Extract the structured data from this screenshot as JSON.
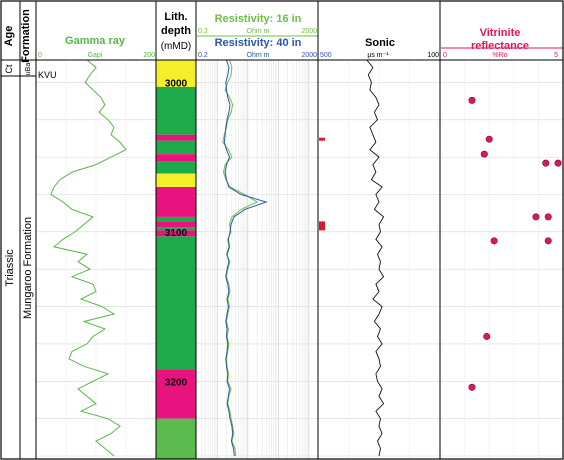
{
  "chart_data": {
    "type": "line",
    "depth_axis": {
      "unit": "mMD",
      "range": [
        2985,
        3252
      ],
      "tick_labels": [
        "3000",
        "3100",
        "3200"
      ]
    },
    "columns": {
      "age": {
        "header": "Age",
        "values": [
          "Ct",
          "Triassic"
        ]
      },
      "formation": {
        "header": "Formation",
        "values": [
          "uBa",
          "KVU",
          "Mungaroo Formation"
        ]
      },
      "gamma_ray": {
        "title": "Gamma ray",
        "unit": "Gapi",
        "range": [
          0,
          200
        ],
        "range_labels": [
          "0",
          "200"
        ],
        "color": "#56b848",
        "depth": [
          2985,
          2990,
          2995,
          3000,
          3005,
          3010,
          3015,
          3020,
          3025,
          3030,
          3035,
          3040,
          3045,
          3050,
          3055,
          3060,
          3065,
          3070,
          3075,
          3080,
          3085,
          3090,
          3095,
          3100,
          3105,
          3110,
          3115,
          3120,
          3125,
          3130,
          3135,
          3140,
          3145,
          3150,
          3155,
          3160,
          3165,
          3170,
          3175,
          3180,
          3185,
          3190,
          3195,
          3200,
          3205,
          3210,
          3215,
          3220,
          3225,
          3230,
          3235,
          3240,
          3245,
          3250
        ],
        "values": [
          85,
          100,
          90,
          82,
          95,
          108,
          115,
          105,
          120,
          130,
          125,
          140,
          150,
          125,
          100,
          60,
          40,
          30,
          25,
          45,
          60,
          95,
          80,
          65,
          45,
          30,
          85,
          70,
          90,
          60,
          95,
          100,
          75,
          110,
          130,
          80,
          115,
          95,
          85,
          60,
          55,
          80,
          120,
          95,
          70,
          85,
          100,
          75,
          120,
          140,
          125,
          100,
          115,
          130
        ]
      },
      "lithology": {
        "title": "Lith.",
        "subtitle": "depth",
        "unit_label": "(mMD)",
        "colors": {
          "sand": "#f3ef2b",
          "shale": "#e8137f",
          "sandstone": "#1faa4a",
          "siltstone": "#5bbb4e"
        },
        "intervals": [
          {
            "top": 2985,
            "base": 3003,
            "type": "sand"
          },
          {
            "top": 3003,
            "base": 3035,
            "type": "sandstone"
          },
          {
            "top": 3035,
            "base": 3039,
            "type": "shale"
          },
          {
            "top": 3039,
            "base": 3048,
            "type": "sandstone"
          },
          {
            "top": 3048,
            "base": 3053,
            "type": "shale"
          },
          {
            "top": 3053,
            "base": 3061,
            "type": "sandstone"
          },
          {
            "top": 3061,
            "base": 3070,
            "type": "sand"
          },
          {
            "top": 3070,
            "base": 3090,
            "type": "shale"
          },
          {
            "top": 3090,
            "base": 3093,
            "type": "sandstone"
          },
          {
            "top": 3093,
            "base": 3097,
            "type": "shale"
          },
          {
            "top": 3097,
            "base": 3099,
            "type": "sandstone"
          },
          {
            "top": 3099,
            "base": 3103,
            "type": "shale"
          },
          {
            "top": 3103,
            "base": 3192,
            "type": "sandstone"
          },
          {
            "top": 3192,
            "base": 3225,
            "type": "shale"
          },
          {
            "top": 3225,
            "base": 3252,
            "type": "siltstone"
          }
        ]
      },
      "resistivity": {
        "scale": "log",
        "unit": "Ohm m",
        "range": [
          0.2,
          2000
        ],
        "range_labels": [
          "0.2",
          "2000"
        ],
        "series": [
          {
            "name": "Resistivity: 16 in",
            "color": "#6dbf45",
            "depth": [
              2985,
              2990,
              2995,
              3000,
              3005,
              3010,
              3015,
              3020,
              3025,
              3030,
              3035,
              3040,
              3045,
              3050,
              3055,
              3060,
              3065,
              3070,
              3075,
              3080,
              3085,
              3090,
              3095,
              3100,
              3105,
              3110,
              3115,
              3120,
              3125,
              3130,
              3135,
              3140,
              3145,
              3150,
              3155,
              3160,
              3165,
              3170,
              3175,
              3180,
              3185,
              3190,
              3195,
              3200,
              3205,
              3210,
              3215,
              3220,
              3225,
              3230,
              3235,
              3240,
              3245,
              3250
            ],
            "values": [
              2.5,
              3,
              2.8,
              2.2,
              1.8,
              2.5,
              3.2,
              2.8,
              2.2,
              2,
              1.7,
              1.5,
              2.3,
              3,
              1.8,
              1.6,
              1.9,
              2.6,
              8,
              20,
              6,
              3,
              2.5,
              2.8,
              2.2,
              2.4,
              2,
              2.6,
              2.2,
              2,
              2.4,
              2.6,
              2.2,
              2.5,
              2.2,
              2,
              2.3,
              2.1,
              2.4,
              2.2,
              2,
              2.1,
              2.3,
              2.2,
              2.8,
              2.4,
              2.2,
              2.6,
              2.8,
              3.2,
              3.5,
              3,
              3.8,
              4
            ]
          },
          {
            "name": "Resistivity: 40 in",
            "color": "#2b57a8",
            "depth": [
              2985,
              2990,
              2995,
              3000,
              3005,
              3010,
              3015,
              3020,
              3025,
              3030,
              3035,
              3040,
              3045,
              3050,
              3055,
              3060,
              3065,
              3070,
              3075,
              3080,
              3085,
              3090,
              3095,
              3100,
              3105,
              3110,
              3115,
              3120,
              3125,
              3130,
              3135,
              3140,
              3145,
              3150,
              3155,
              3160,
              3165,
              3170,
              3175,
              3180,
              3185,
              3190,
              3195,
              3200,
              3205,
              3210,
              3215,
              3220,
              3225,
              3230,
              3235,
              3240,
              3245,
              3250
            ],
            "values": [
              2,
              2.4,
              2.2,
              1.9,
              2,
              2.2,
              2.6,
              2.4,
              2.1,
              1.9,
              1.8,
              1.7,
              2,
              2.5,
              2,
              1.8,
              2,
              2.4,
              6,
              40,
              8,
              3.5,
              2.8,
              2.6,
              2.3,
              2.5,
              2.1,
              2.4,
              2.1,
              1.9,
              2.2,
              2.4,
              2.1,
              2.3,
              2.1,
              1.9,
              2.1,
              2,
              2.2,
              2.1,
              1.9,
              2,
              2.2,
              2.1,
              2.5,
              2.3,
              2.1,
              2.4,
              2.6,
              3,
              3.2,
              2.9,
              3.4,
              3.6
            ]
          }
        ]
      },
      "sonic": {
        "title": "Sonic",
        "unit": "µs m⁻¹",
        "range": [
          500,
          100
        ],
        "range_labels": [
          "500",
          "100"
        ],
        "color": "#111111",
        "depth": [
          2985,
          2990,
          2995,
          3000,
          3005,
          3010,
          3015,
          3020,
          3025,
          3030,
          3035,
          3040,
          3045,
          3050,
          3055,
          3060,
          3065,
          3070,
          3075,
          3080,
          3085,
          3090,
          3095,
          3100,
          3105,
          3110,
          3115,
          3120,
          3125,
          3130,
          3135,
          3140,
          3145,
          3150,
          3155,
          3160,
          3165,
          3170,
          3175,
          3180,
          3185,
          3190,
          3195,
          3200,
          3205,
          3210,
          3215,
          3220,
          3225,
          3230,
          3235,
          3240,
          3245,
          3250
        ],
        "values": [
          340,
          320,
          335,
          325,
          330,
          310,
          300,
          315,
          305,
          330,
          320,
          310,
          330,
          300,
          320,
          310,
          325,
          290,
          310,
          300,
          315,
          285,
          300,
          295,
          310,
          290,
          305,
          295,
          300,
          285,
          310,
          300,
          320,
          290,
          300,
          315,
          295,
          305,
          290,
          310,
          300,
          295,
          310,
          305,
          290,
          300,
          285,
          310,
          295,
          300,
          290,
          305,
          295,
          300
        ],
        "markers": [
          {
            "top": 3037,
            "base": 3039
          },
          {
            "top": 3093,
            "base": 3099
          }
        ],
        "marker_color": "#d41a30"
      },
      "vitrinite": {
        "title": "Vitrinite",
        "subtitle": "reflectance",
        "unit": "%Ro",
        "range": [
          0,
          5
        ],
        "range_labels": [
          "0",
          "5"
        ],
        "color": "#e0165c",
        "points": [
          {
            "ro": 1.3,
            "depth": 3012
          },
          {
            "ro": 2.0,
            "depth": 3038
          },
          {
            "ro": 1.8,
            "depth": 3048
          },
          {
            "ro": 4.3,
            "depth": 3054
          },
          {
            "ro": 4.8,
            "depth": 3054
          },
          {
            "ro": 3.9,
            "depth": 3090
          },
          {
            "ro": 4.4,
            "depth": 3090
          },
          {
            "ro": 2.2,
            "depth": 3106
          },
          {
            "ro": 4.4,
            "depth": 3106
          },
          {
            "ro": 1.9,
            "depth": 3170
          },
          {
            "ro": 1.3,
            "depth": 3204
          }
        ]
      }
    }
  }
}
